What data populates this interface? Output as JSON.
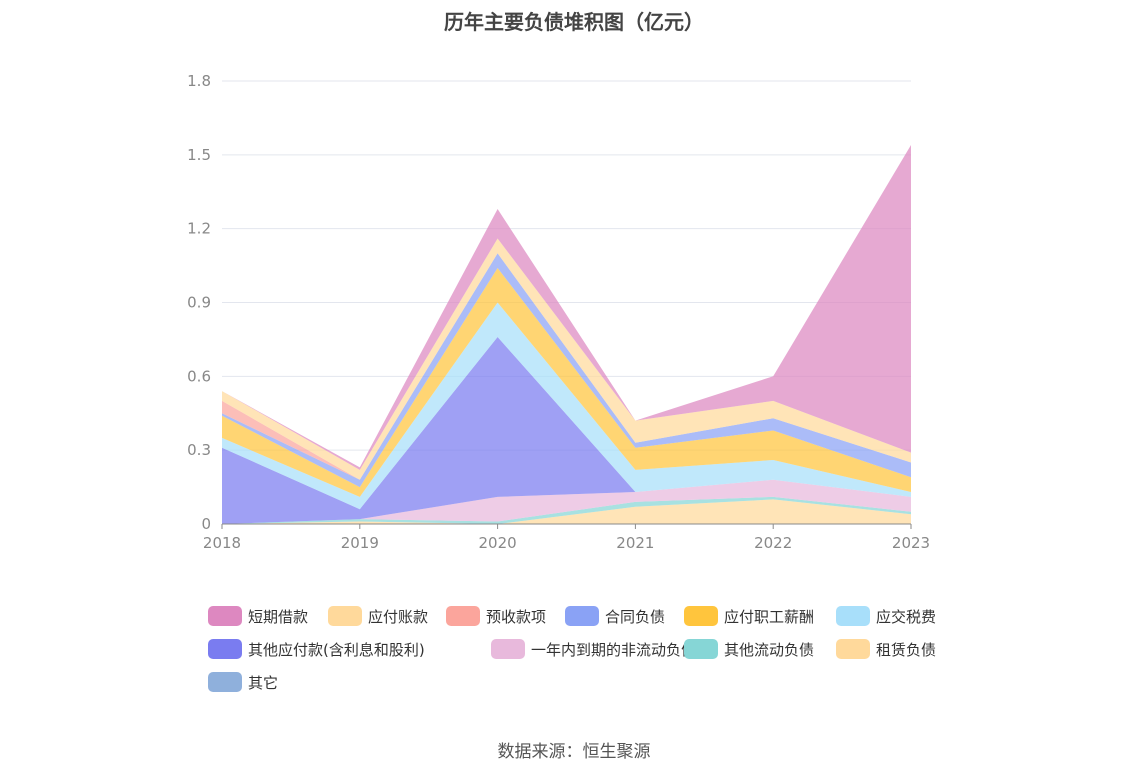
{
  "chart_data": {
    "type": "area",
    "stacked": true,
    "title": "历年主要负债堆积图（亿元）",
    "source": "数据来源：恒生聚源",
    "x": [
      "2018",
      "2019",
      "2020",
      "2021",
      "2022",
      "2023"
    ],
    "ylim": [
      0,
      1.8
    ],
    "yticks": [
      "0",
      "0.3",
      "0.6",
      "0.9",
      "1.2",
      "1.5",
      "1.8"
    ],
    "grid": true,
    "legend_position": "bottom",
    "series": [
      {
        "name": "其它",
        "color": "#8fb0dc",
        "values": [
          0,
          0,
          0,
          0,
          0,
          0
        ]
      },
      {
        "name": "租赁负债",
        "color": "#ffd99b",
        "values": [
          0,
          0.01,
          0,
          0.07,
          0.1,
          0.04
        ]
      },
      {
        "name": "其他流动负债",
        "color": "#86d6d6",
        "values": [
          0,
          0.01,
          0.01,
          0.02,
          0.01,
          0.01
        ]
      },
      {
        "name": "一年内到期的非流动负债",
        "color": "#e8b9dc",
        "values": [
          0,
          0,
          0.1,
          0.04,
          0.07,
          0.06
        ]
      },
      {
        "name": "其他应付款(含利息和股利)",
        "color": "#7a7cf0",
        "values": [
          0.31,
          0.04,
          0.65,
          0,
          0,
          0
        ]
      },
      {
        "name": "应交税费",
        "color": "#a8dffa",
        "values": [
          0.04,
          0.05,
          0.14,
          0.09,
          0.08,
          0.02
        ]
      },
      {
        "name": "应付职工薪酬",
        "color": "#ffc53d",
        "values": [
          0.09,
          0.04,
          0.14,
          0.09,
          0.12,
          0.06
        ]
      },
      {
        "name": "合同负债",
        "color": "#8aa2f5",
        "values": [
          0.01,
          0.03,
          0.06,
          0.02,
          0.05,
          0.06
        ]
      },
      {
        "name": "预收款项",
        "color": "#fba59c",
        "values": [
          0.05,
          0,
          0,
          0,
          0,
          0
        ]
      },
      {
        "name": "应付账款",
        "color": "#ffd99b",
        "values": [
          0.04,
          0.04,
          0.06,
          0.09,
          0.07,
          0.04
        ]
      },
      {
        "name": "短期借款",
        "color": "#dd88c0",
        "values": [
          0,
          0.01,
          0.12,
          0,
          0.1,
          1.25
        ]
      }
    ],
    "legend": [
      {
        "name": "短期借款",
        "color": "#dd88c0"
      },
      {
        "name": "应付账款",
        "color": "#ffd99b"
      },
      {
        "name": "预收款项",
        "color": "#fba59c"
      },
      {
        "name": "合同负债",
        "color": "#8aa2f5"
      },
      {
        "name": "应付职工薪酬",
        "color": "#ffc53d"
      },
      {
        "name": "应交税费",
        "color": "#a8dffa"
      },
      {
        "name": "其他应付款(含利息和股利)",
        "color": "#7a7cf0"
      },
      {
        "name": "一年内到期的非流动负债",
        "color": "#e8b9dc"
      },
      {
        "name": "其他流动负债",
        "color": "#86d6d6"
      },
      {
        "name": "租赁负债",
        "color": "#ffd99b"
      },
      {
        "name": "其它",
        "color": "#8fb0dc"
      }
    ]
  }
}
